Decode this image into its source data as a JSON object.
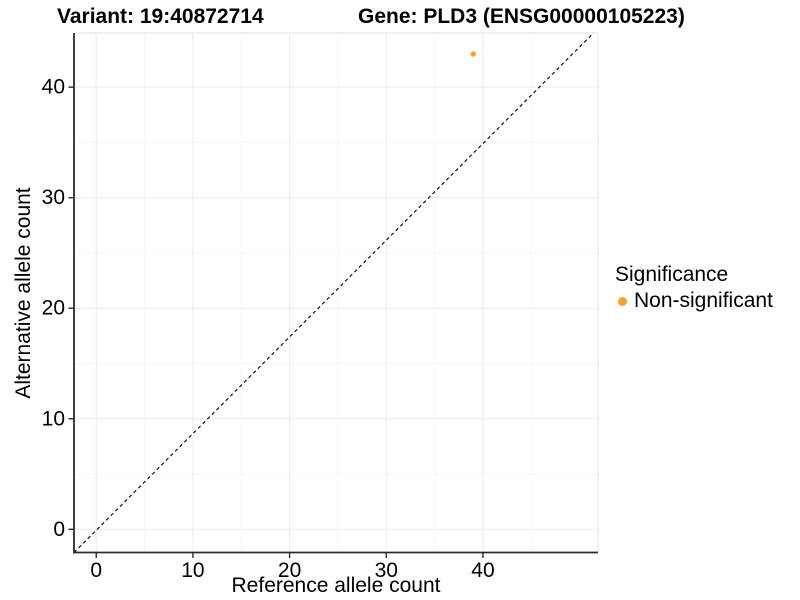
{
  "titles": {
    "left": "Variant: 19:40872714",
    "right": "Gene: PLD3 (ENSG00000105223)"
  },
  "legend": {
    "title": "Significance",
    "items": [
      {
        "label": "Non-significant",
        "color": "#F9A02C"
      }
    ]
  },
  "colors": {
    "point": "#F9A02C",
    "axis_line": "#2b2b2b",
    "tick_mark": "#2b2b2b",
    "grid_major": "#ececec",
    "grid_minor": "#f6f6f6",
    "panel_border": "#e3e3e3",
    "reference_line": "#111111",
    "text": "#000000"
  },
  "chart_data": {
    "type": "scatter",
    "title": "Variant: 19:40872714  /  Gene: PLD3 (ENSG00000105223)",
    "xlabel": "Reference allele count",
    "ylabel": "Alternative allele count",
    "xlim": [
      -2.3,
      51.9
    ],
    "ylim": [
      -2.1,
      44.9
    ],
    "xticks": [
      0,
      10,
      20,
      30,
      40
    ],
    "yticks": [
      0,
      10,
      20,
      30,
      40
    ],
    "xticks_minor": [
      5,
      15,
      25,
      35,
      45
    ],
    "yticks_minor": [
      5,
      15,
      25,
      35
    ],
    "grid": "major+minor",
    "series": [
      {
        "name": "Non-significant",
        "color": "#F9A02C",
        "points": [
          {
            "x": 39,
            "y": 43
          }
        ]
      }
    ],
    "reference_line": {
      "type": "identity",
      "style": "dashed"
    },
    "legend": {
      "title": "Significance",
      "position": "right",
      "entries": [
        "Non-significant"
      ]
    }
  }
}
